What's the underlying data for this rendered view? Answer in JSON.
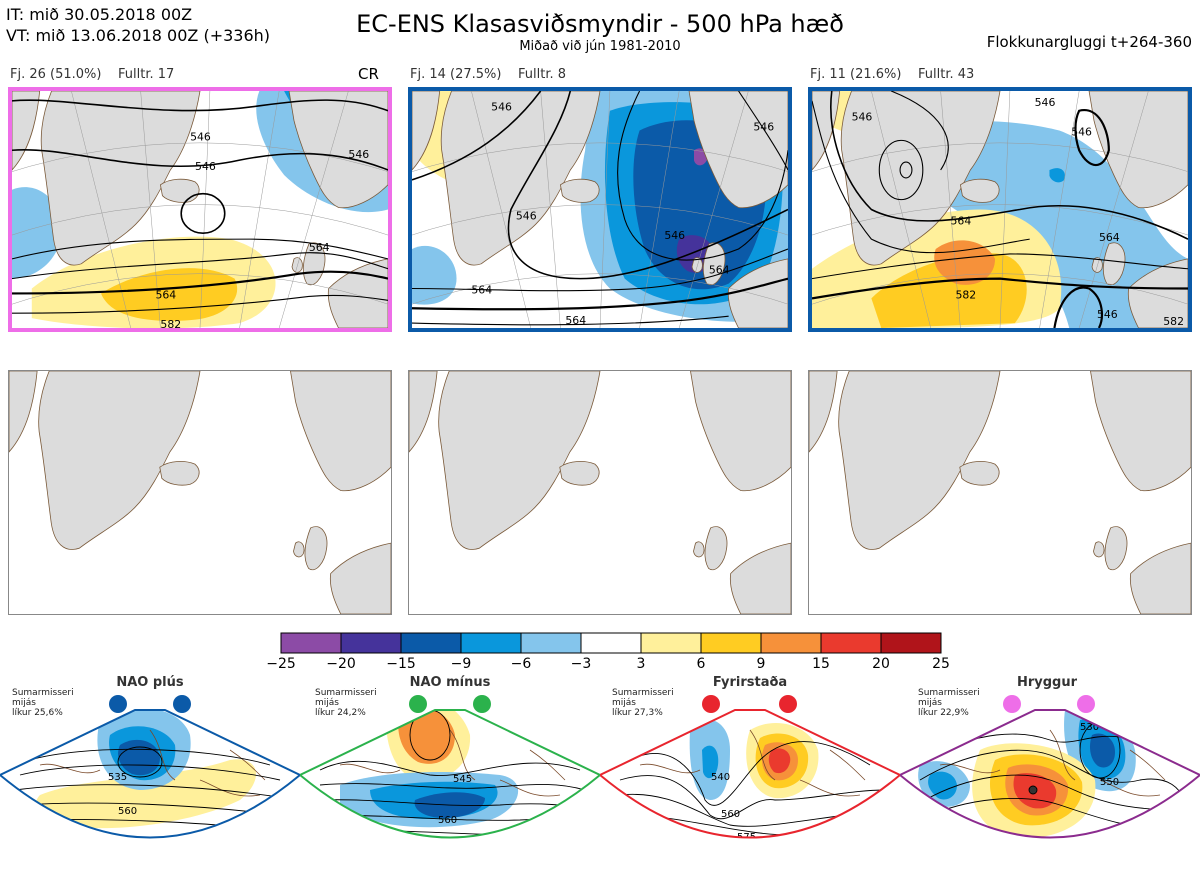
{
  "header": {
    "init_line": "IT: mið 30.05.2018 00Z",
    "valid_line": "VT: mið 13.06.2018 00Z  (+336h)",
    "title": "EC-ENS Klasasviðsmyndir - 500 hPa hæð",
    "subtitle": "Miðað við jún 1981-2010",
    "window": "Flokkunargluggi t+264-360"
  },
  "clusters": [
    {
      "label": "Fj. 26 (51.0%)",
      "member": "Fulltr. 17",
      "tag": "CR",
      "border_color": "#ee6ee8",
      "contour_labels": [
        "546",
        "546",
        "546",
        "564",
        "564",
        "582"
      ]
    },
    {
      "label": "Fj. 14 (27.5%)",
      "member": "Fulltr. 8",
      "tag": "",
      "border_color": "#0b5aa8",
      "contour_labels": [
        "546",
        "546",
        "546",
        "546",
        "564",
        "564",
        "564"
      ]
    },
    {
      "label": "Fj. 11 (21.6%)",
      "member": "Fulltr. 43",
      "tag": "",
      "border_color": "#0b5aa8",
      "contour_labels": [
        "546",
        "546",
        "546",
        "564",
        "564",
        "582",
        "546",
        "582"
      ]
    }
  ],
  "colorbar": {
    "ticks": [
      "−25",
      "−20",
      "−15",
      "−9",
      "−6",
      "−3",
      "3",
      "6",
      "9",
      "15",
      "20",
      "25"
    ],
    "colors": [
      "#8c4ba6",
      "#45339b",
      "#0b5aa8",
      "#0a97dc",
      "#84c5ec",
      "#ffffff",
      "#fff09b",
      "#ffcc22",
      "#f6913a",
      "#ea3a2e",
      "#b0141a"
    ]
  },
  "regimes": [
    {
      "name": "NAO plús",
      "note": [
        "Sumarmisseri",
        "mijás",
        "líkur 25,6%"
      ],
      "color": "#0b5aa8",
      "contour_labels": [
        "535",
        "560"
      ]
    },
    {
      "name": "NAO mínus",
      "note": [
        "Sumarmisseri",
        "mijás",
        "líkur 24,2%"
      ],
      "color": "#2bb24c",
      "contour_labels": [
        "545",
        "560",
        "575"
      ]
    },
    {
      "name": "Fyrirstaða",
      "note": [
        "Sumarmisseri",
        "mijás",
        "líkur 27,3%"
      ],
      "color": "#e8252e",
      "contour_labels": [
        "540",
        "560",
        "575"
      ]
    },
    {
      "name": "Hryggur",
      "note": [
        "Sumarmisseri",
        "mijás",
        "líkur 22,9%"
      ],
      "color": "#ee6ee8",
      "contour_labels": [
        "530",
        "550",
        "575"
      ]
    }
  ]
}
